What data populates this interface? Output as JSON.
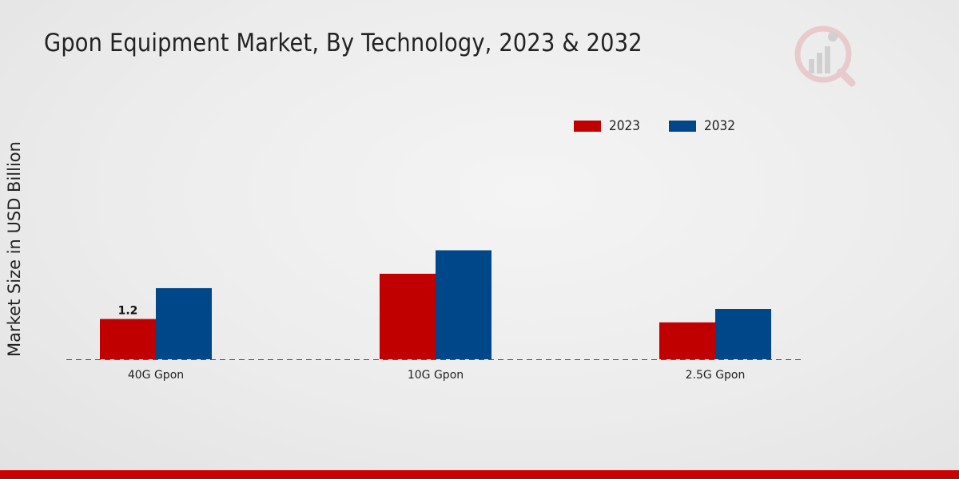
{
  "chart_data": {
    "type": "bar",
    "title": "Gpon Equipment Market, By Technology, 2023 & 2032",
    "xlabel": "",
    "ylabel": "Market Size in USD Billion",
    "categories": [
      "40G Gpon",
      "10G Gpon",
      "2.5G Gpon"
    ],
    "series": [
      {
        "name": "2023",
        "color": "#c00000",
        "values": [
          1.2,
          2.55,
          1.1
        ]
      },
      {
        "name": "2032",
        "color": "#00478a",
        "values": [
          2.12,
          3.25,
          1.5
        ]
      }
    ],
    "data_labels": [
      {
        "series": 0,
        "index": 0,
        "text": "1.2"
      }
    ],
    "ylim": [
      0,
      7
    ],
    "grid": false,
    "legend_position": "top-right"
  },
  "colors": {
    "footer": "#cc0000",
    "baseline": "#555555"
  }
}
